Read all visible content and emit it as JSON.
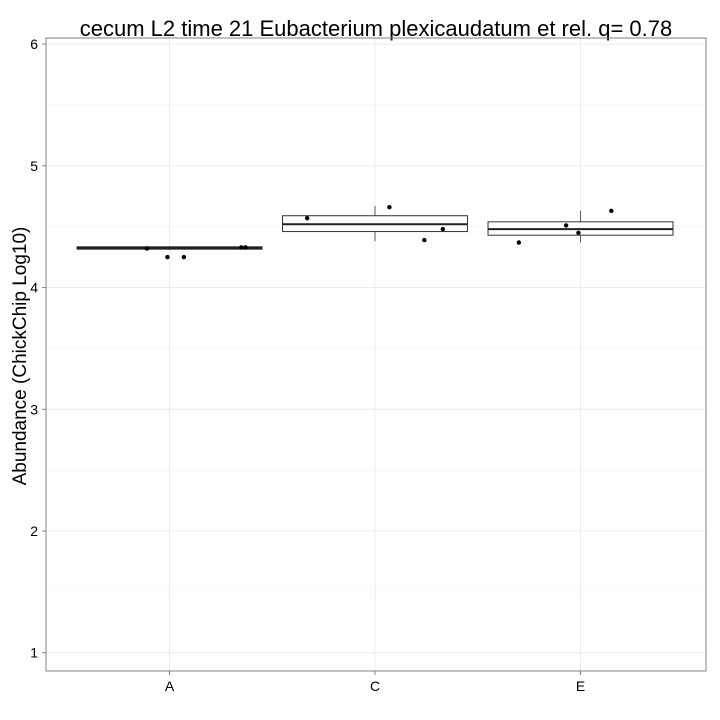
{
  "chart_data": {
    "type": "boxplot",
    "title": "cecum L2 time 21 Eubacterium plexicaudatum et rel. q= 0.78",
    "xlabel": "",
    "ylabel": "Abundance (ChickChip Log10)",
    "ylim": [
      0.85,
      6.05
    ],
    "yticks": [
      1,
      2,
      3,
      4,
      5,
      6
    ],
    "categories": [
      "A",
      "C",
      "E"
    ],
    "grid": true,
    "boxes": [
      {
        "category": "A",
        "min": 4.31,
        "q1": 4.315,
        "median": 4.325,
        "q3": 4.335,
        "max": 4.34
      },
      {
        "category": "C",
        "min": 4.38,
        "q1": 4.46,
        "median": 4.52,
        "q3": 4.59,
        "max": 4.67
      },
      {
        "category": "E",
        "min": 4.37,
        "q1": 4.43,
        "median": 4.48,
        "q3": 4.54,
        "max": 4.63
      }
    ],
    "points": [
      {
        "category": "A",
        "jitter": -0.11,
        "y": 4.32
      },
      {
        "category": "A",
        "jitter": -0.01,
        "y": 4.25
      },
      {
        "category": "A",
        "jitter": 0.07,
        "y": 4.25
      },
      {
        "category": "A",
        "jitter": 0.35,
        "y": 4.33
      },
      {
        "category": "A",
        "jitter": 0.37,
        "y": 4.33
      },
      {
        "category": "C",
        "jitter": -0.33,
        "y": 4.57
      },
      {
        "category": "C",
        "jitter": 0.07,
        "y": 4.66
      },
      {
        "category": "C",
        "jitter": 0.24,
        "y": 4.39
      },
      {
        "category": "C",
        "jitter": 0.33,
        "y": 4.48
      },
      {
        "category": "E",
        "jitter": -0.3,
        "y": 4.37
      },
      {
        "category": "E",
        "jitter": -0.07,
        "y": 4.51
      },
      {
        "category": "E",
        "jitter": -0.01,
        "y": 4.45
      },
      {
        "category": "E",
        "jitter": 0.15,
        "y": 4.63
      }
    ]
  }
}
